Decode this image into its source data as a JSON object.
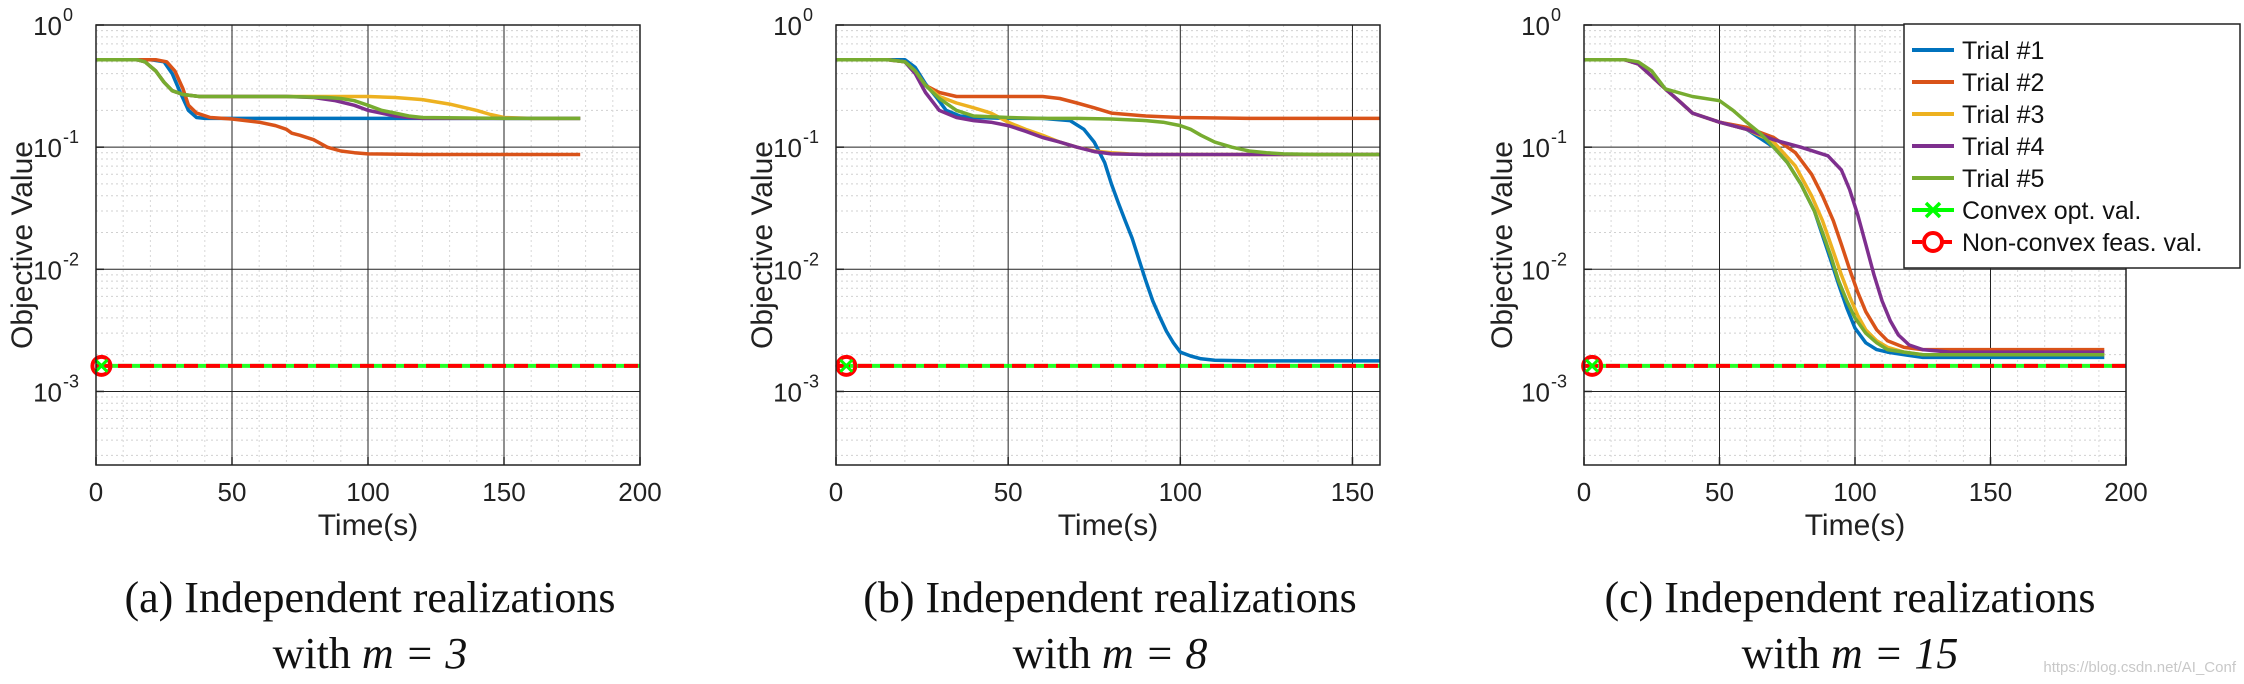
{
  "chart_data": [
    {
      "type": "line",
      "panel_label": "(a)",
      "caption_line1": "(a) Independent realizations",
      "caption_line2_prefix": "with ",
      "caption_math": "m = 3",
      "xlabel": "Time(s)",
      "ylabel": "Objective Value",
      "yscale": "log",
      "xlim": [
        0,
        200
      ],
      "ylim": [
        0.00025,
        1.0
      ],
      "x_ticks": [
        0,
        50,
        100,
        150,
        200
      ],
      "y_ticks": [
        {
          "base": "10",
          "exp": "0",
          "value": 1.0
        },
        {
          "base": "10",
          "exp": "-1",
          "value": 0.1
        },
        {
          "base": "10",
          "exp": "-2",
          "value": 0.01
        },
        {
          "base": "10",
          "exp": "-3",
          "value": 0.001
        }
      ],
      "grid": true,
      "legend": null,
      "series": [
        {
          "name": "Trial #1",
          "color": "#0072BD",
          "x": [
            0,
            15,
            20,
            25,
            28,
            31,
            34,
            37,
            40,
            50,
            60,
            80,
            100,
            120,
            150,
            178
          ],
          "y": [
            0.52,
            0.52,
            0.52,
            0.5,
            0.4,
            0.28,
            0.2,
            0.175,
            0.172,
            0.172,
            0.172,
            0.172,
            0.172,
            0.172,
            0.172,
            0.172
          ]
        },
        {
          "name": "Trial #2",
          "color": "#D95319",
          "x": [
            0,
            15,
            22,
            26,
            29,
            32,
            34,
            37,
            42,
            50,
            60,
            66,
            70,
            72,
            75,
            80,
            85,
            90,
            95,
            100,
            120,
            150,
            178
          ],
          "y": [
            0.52,
            0.52,
            0.52,
            0.5,
            0.42,
            0.3,
            0.22,
            0.19,
            0.175,
            0.17,
            0.16,
            0.15,
            0.14,
            0.13,
            0.125,
            0.115,
            0.1,
            0.093,
            0.09,
            0.088,
            0.087,
            0.087,
            0.087
          ]
        },
        {
          "name": "Trial #3",
          "color": "#EDB120",
          "x": [
            0,
            15,
            18,
            22,
            25,
            28,
            32,
            38,
            50,
            80,
            100,
            110,
            120,
            130,
            140,
            145,
            150,
            160,
            178
          ],
          "y": [
            0.52,
            0.52,
            0.5,
            0.42,
            0.34,
            0.29,
            0.27,
            0.26,
            0.26,
            0.26,
            0.26,
            0.255,
            0.245,
            0.225,
            0.2,
            0.185,
            0.175,
            0.172,
            0.172
          ]
        },
        {
          "name": "Trial #4",
          "color": "#7E2F8E",
          "x": [
            0,
            15,
            18,
            22,
            25,
            28,
            32,
            38,
            50,
            70,
            80,
            88,
            95,
            100,
            105,
            110,
            115,
            120,
            150,
            178
          ],
          "y": [
            0.52,
            0.52,
            0.5,
            0.42,
            0.34,
            0.29,
            0.27,
            0.26,
            0.26,
            0.26,
            0.255,
            0.24,
            0.22,
            0.2,
            0.19,
            0.18,
            0.175,
            0.172,
            0.172,
            0.172
          ]
        },
        {
          "name": "Trial #5",
          "color": "#77AC30",
          "x": [
            0,
            15,
            18,
            22,
            25,
            28,
            32,
            38,
            50,
            70,
            85,
            90,
            95,
            100,
            105,
            110,
            115,
            120,
            150,
            178
          ],
          "y": [
            0.52,
            0.52,
            0.5,
            0.42,
            0.34,
            0.29,
            0.27,
            0.26,
            0.26,
            0.26,
            0.255,
            0.25,
            0.24,
            0.22,
            0.2,
            0.19,
            0.18,
            0.175,
            0.172,
            0.172
          ]
        }
      ],
      "hlines": [
        {
          "name": "Convex opt. val.",
          "value": 0.00162,
          "color": "#00FF00",
          "style": "solid"
        },
        {
          "name": "Non-convex feas. val.",
          "value": 0.00162,
          "color": "#FF0000",
          "style": "dashed"
        }
      ],
      "markers": [
        {
          "name": "Non-convex feas. val.",
          "x": 2,
          "y": 0.00162,
          "shape": "circle",
          "color": "#FF0000"
        },
        {
          "name": "Convex opt. val.",
          "x": 2,
          "y": 0.00162,
          "shape": "x",
          "color": "#00FF00"
        }
      ]
    },
    {
      "type": "line",
      "panel_label": "(b)",
      "caption_line1": "(b) Independent realizations",
      "caption_line2_prefix": "with ",
      "caption_math": "m = 8",
      "xlabel": "Time(s)",
      "ylabel": "Objective Value",
      "yscale": "log",
      "xlim": [
        0,
        158
      ],
      "ylim": [
        0.00025,
        1.0
      ],
      "x_ticks": [
        0,
        50,
        100,
        150
      ],
      "y_ticks": [
        {
          "base": "10",
          "exp": "0",
          "value": 1.0
        },
        {
          "base": "10",
          "exp": "-1",
          "value": 0.1
        },
        {
          "base": "10",
          "exp": "-2",
          "value": 0.01
        },
        {
          "base": "10",
          "exp": "-3",
          "value": 0.001
        }
      ],
      "grid": true,
      "legend": null,
      "series": [
        {
          "name": "Trial #1",
          "color": "#0072BD",
          "x": [
            0,
            15,
            20,
            23,
            26,
            29,
            32,
            36,
            40,
            50,
            60,
            68,
            72,
            75,
            78,
            80,
            82,
            84,
            86,
            88,
            90,
            92,
            94,
            96,
            98,
            100,
            103,
            106,
            110,
            120,
            140,
            158
          ],
          "y": [
            0.52,
            0.52,
            0.52,
            0.45,
            0.33,
            0.26,
            0.2,
            0.18,
            0.175,
            0.172,
            0.172,
            0.165,
            0.14,
            0.11,
            0.075,
            0.05,
            0.035,
            0.025,
            0.018,
            0.012,
            0.008,
            0.0055,
            0.0041,
            0.0031,
            0.0025,
            0.0021,
            0.00195,
            0.00185,
            0.0018,
            0.00178,
            0.00178,
            0.00178
          ]
        },
        {
          "name": "Trial #2",
          "color": "#D95319",
          "x": [
            0,
            15,
            20,
            23,
            26,
            30,
            35,
            40,
            50,
            60,
            65,
            70,
            75,
            80,
            90,
            100,
            120,
            158
          ],
          "y": [
            0.52,
            0.52,
            0.5,
            0.42,
            0.32,
            0.28,
            0.26,
            0.26,
            0.26,
            0.26,
            0.25,
            0.23,
            0.21,
            0.19,
            0.18,
            0.175,
            0.172,
            0.172
          ]
        },
        {
          "name": "Trial #3",
          "color": "#EDB120",
          "x": [
            0,
            15,
            20,
            23,
            26,
            30,
            35,
            40,
            45,
            50,
            55,
            60,
            65,
            70,
            75,
            80,
            85,
            90,
            100,
            120,
            158
          ],
          "y": [
            0.52,
            0.52,
            0.5,
            0.42,
            0.32,
            0.26,
            0.23,
            0.21,
            0.19,
            0.16,
            0.14,
            0.125,
            0.11,
            0.1,
            0.093,
            0.09,
            0.088,
            0.087,
            0.087,
            0.087,
            0.087
          ]
        },
        {
          "name": "Trial #4",
          "color": "#7E2F8E",
          "x": [
            0,
            15,
            20,
            23,
            26,
            30,
            35,
            40,
            45,
            50,
            55,
            60,
            65,
            70,
            75,
            80,
            90,
            100,
            120,
            158
          ],
          "y": [
            0.52,
            0.52,
            0.5,
            0.4,
            0.28,
            0.2,
            0.175,
            0.165,
            0.16,
            0.15,
            0.135,
            0.12,
            0.11,
            0.1,
            0.092,
            0.088,
            0.087,
            0.087,
            0.087,
            0.087
          ]
        },
        {
          "name": "Trial #5",
          "color": "#77AC30",
          "x": [
            0,
            15,
            20,
            23,
            26,
            30,
            35,
            40,
            50,
            60,
            70,
            80,
            90,
            95,
            100,
            103,
            106,
            110,
            115,
            120,
            125,
            130,
            140,
            158
          ],
          "y": [
            0.52,
            0.52,
            0.5,
            0.42,
            0.32,
            0.25,
            0.2,
            0.18,
            0.175,
            0.172,
            0.172,
            0.17,
            0.165,
            0.16,
            0.15,
            0.14,
            0.125,
            0.11,
            0.1,
            0.093,
            0.09,
            0.088,
            0.087,
            0.087
          ]
        }
      ],
      "hlines": [
        {
          "name": "Convex opt. val.",
          "value": 0.00162,
          "color": "#00FF00",
          "style": "solid"
        },
        {
          "name": "Non-convex feas. val.",
          "value": 0.00162,
          "color": "#FF0000",
          "style": "dashed"
        }
      ],
      "markers": [
        {
          "name": "Non-convex feas. val.",
          "x": 3,
          "y": 0.00162,
          "shape": "circle",
          "color": "#FF0000"
        },
        {
          "name": "Convex opt. val.",
          "x": 3,
          "y": 0.00162,
          "shape": "x",
          "color": "#00FF00"
        }
      ]
    },
    {
      "type": "line",
      "panel_label": "(c)",
      "caption_line1": "(c) Independent realizations",
      "caption_line2_prefix": "with ",
      "caption_math": "m = 15",
      "xlabel": "Time(s)",
      "ylabel": "Objective Value",
      "yscale": "log",
      "xlim": [
        0,
        200
      ],
      "ylim": [
        0.00025,
        1.0
      ],
      "x_ticks": [
        0,
        50,
        100,
        150,
        200
      ],
      "y_ticks": [
        {
          "base": "10",
          "exp": "0",
          "value": 1.0
        },
        {
          "base": "10",
          "exp": "-1",
          "value": 0.1
        },
        {
          "base": "10",
          "exp": "-2",
          "value": 0.01
        },
        {
          "base": "10",
          "exp": "-3",
          "value": 0.001
        }
      ],
      "grid": true,
      "legend": "top-right",
      "series": [
        {
          "name": "Trial #1",
          "color": "#0072BD",
          "x": [
            0,
            15,
            20,
            25,
            30,
            35,
            40,
            50,
            60,
            70,
            75,
            80,
            85,
            88,
            91,
            94,
            97,
            100,
            104,
            108,
            112,
            118,
            125,
            140,
            170,
            192
          ],
          "y": [
            0.52,
            0.52,
            0.48,
            0.38,
            0.3,
            0.24,
            0.19,
            0.16,
            0.14,
            0.1,
            0.075,
            0.05,
            0.03,
            0.019,
            0.012,
            0.0075,
            0.0048,
            0.0033,
            0.0025,
            0.0022,
            0.0021,
            0.002,
            0.0019,
            0.0019,
            0.0019,
            0.0019
          ]
        },
        {
          "name": "Trial #2",
          "color": "#D95319",
          "x": [
            0,
            15,
            20,
            25,
            30,
            35,
            40,
            50,
            60,
            70,
            78,
            84,
            88,
            92,
            95,
            98,
            101,
            104,
            108,
            112,
            118,
            125,
            140,
            170,
            192
          ],
          "y": [
            0.52,
            0.52,
            0.48,
            0.38,
            0.3,
            0.24,
            0.19,
            0.16,
            0.145,
            0.12,
            0.09,
            0.06,
            0.04,
            0.025,
            0.016,
            0.01,
            0.0065,
            0.0045,
            0.0032,
            0.0026,
            0.0023,
            0.0022,
            0.0022,
            0.0022,
            0.0022
          ]
        },
        {
          "name": "Trial #3",
          "color": "#EDB120",
          "x": [
            0,
            15,
            20,
            25,
            30,
            35,
            40,
            50,
            60,
            70,
            78,
            84,
            88,
            92,
            95,
            98,
            101,
            104,
            108,
            112,
            118,
            125,
            140,
            170,
            192
          ],
          "y": [
            0.52,
            0.52,
            0.48,
            0.38,
            0.3,
            0.24,
            0.19,
            0.16,
            0.14,
            0.11,
            0.07,
            0.04,
            0.025,
            0.014,
            0.009,
            0.006,
            0.0042,
            0.0032,
            0.0026,
            0.0023,
            0.0021,
            0.002,
            0.002,
            0.002,
            0.002
          ]
        },
        {
          "name": "Trial #4",
          "color": "#7E2F8E",
          "x": [
            0,
            15,
            20,
            25,
            30,
            35,
            40,
            50,
            60,
            70,
            80,
            90,
            95,
            98,
            101,
            104,
            107,
            110,
            113,
            116,
            120,
            125,
            135,
            170,
            192
          ],
          "y": [
            0.52,
            0.52,
            0.48,
            0.38,
            0.3,
            0.24,
            0.19,
            0.16,
            0.14,
            0.115,
            0.1,
            0.085,
            0.065,
            0.045,
            0.028,
            0.016,
            0.009,
            0.0055,
            0.0038,
            0.0029,
            0.0024,
            0.0022,
            0.0021,
            0.0021,
            0.0021
          ]
        },
        {
          "name": "Trial #5",
          "color": "#77AC30",
          "x": [
            0,
            15,
            20,
            25,
            30,
            40,
            50,
            55,
            60,
            65,
            70,
            75,
            80,
            85,
            88,
            91,
            94,
            97,
            100,
            104,
            108,
            112,
            118,
            125,
            140,
            170,
            192
          ],
          "y": [
            0.52,
            0.52,
            0.5,
            0.42,
            0.3,
            0.26,
            0.24,
            0.2,
            0.16,
            0.13,
            0.1,
            0.075,
            0.05,
            0.03,
            0.02,
            0.013,
            0.008,
            0.0055,
            0.004,
            0.003,
            0.0025,
            0.0022,
            0.0021,
            0.002,
            0.002,
            0.002,
            0.002
          ]
        }
      ],
      "legend_entries": [
        {
          "label": "Trial #1",
          "color": "#0072BD",
          "kind": "line"
        },
        {
          "label": "Trial #2",
          "color": "#D95319",
          "kind": "line"
        },
        {
          "label": "Trial #3",
          "color": "#EDB120",
          "kind": "line"
        },
        {
          "label": "Trial #4",
          "color": "#7E2F8E",
          "kind": "line"
        },
        {
          "label": "Trial #5",
          "color": "#77AC30",
          "kind": "line"
        },
        {
          "label": "Convex opt. val.",
          "color": "#00FF00",
          "kind": "x"
        },
        {
          "label": "Non-convex feas. val.",
          "color": "#FF0000",
          "kind": "circle"
        }
      ],
      "hlines": [
        {
          "name": "Convex opt. val.",
          "value": 0.00162,
          "color": "#00FF00",
          "style": "solid"
        },
        {
          "name": "Non-convex feas. val.",
          "value": 0.00162,
          "color": "#FF0000",
          "style": "dashed"
        }
      ],
      "markers": [
        {
          "name": "Non-convex feas. val.",
          "x": 3,
          "y": 0.00162,
          "shape": "circle",
          "color": "#FF0000"
        },
        {
          "name": "Convex opt. val.",
          "x": 3,
          "y": 0.00162,
          "shape": "x",
          "color": "#00FF00"
        }
      ]
    }
  ],
  "watermark": "https://blog.csdn.net/AI_Conf"
}
